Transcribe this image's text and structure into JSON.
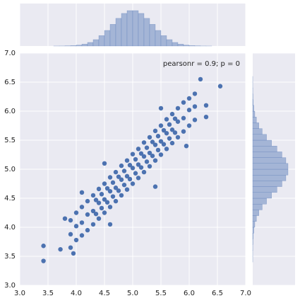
{
  "chart_data": {
    "type": "scatter",
    "annotation": "pearsonr = 0.9; p = 0",
    "color": "#4c72b0",
    "hist_color": "#a4b5d6",
    "grid": true,
    "xlim": [
      3.0,
      7.0
    ],
    "ylim": [
      3.0,
      7.0
    ],
    "xticks": [
      {
        "value": 3.0,
        "label": "3.0"
      },
      {
        "value": 3.5,
        "label": "3.5"
      },
      {
        "value": 4.0,
        "label": "4.0"
      },
      {
        "value": 4.5,
        "label": "4.5"
      },
      {
        "value": 5.0,
        "label": "5.0"
      },
      {
        "value": 5.5,
        "label": "5.5"
      },
      {
        "value": 6.0,
        "label": "6.0"
      },
      {
        "value": 6.5,
        "label": "6.5"
      },
      {
        "value": 7.0,
        "label": "7.0"
      }
    ],
    "yticks": [
      {
        "value": 3.0,
        "label": "3.0"
      },
      {
        "value": 3.5,
        "label": "3.5"
      },
      {
        "value": 4.0,
        "label": "4.0"
      },
      {
        "value": 4.5,
        "label": "4.5"
      },
      {
        "value": 5.0,
        "label": "5.0"
      },
      {
        "value": 5.5,
        "label": "5.5"
      },
      {
        "value": 6.0,
        "label": "6.0"
      },
      {
        "value": 6.5,
        "label": "6.5"
      },
      {
        "value": 7.0,
        "label": "7.0"
      }
    ],
    "x": [
      3.9,
      3.9,
      3.9,
      4.0,
      4.0,
      4.0,
      4.1,
      4.1,
      4.1,
      4.2,
      4.2,
      4.2,
      4.3,
      4.3,
      4.3,
      4.4,
      4.4,
      4.4,
      4.5,
      4.5,
      4.5,
      4.6,
      4.6,
      4.6,
      4.7,
      4.7,
      4.7,
      4.8,
      4.8,
      4.8,
      4.9,
      4.9,
      4.9,
      5.0,
      5.0,
      5.0,
      5.1,
      5.1,
      5.1,
      5.2,
      5.2,
      5.2,
      5.3,
      5.3,
      5.3,
      5.4,
      5.4,
      5.4,
      5.5,
      5.5,
      5.5,
      5.6,
      5.6,
      5.6,
      5.7,
      5.7,
      5.7,
      5.8,
      5.8,
      5.8,
      5.9,
      5.9,
      5.9,
      6.0,
      6.0,
      6.0,
      6.1,
      6.1,
      6.1,
      3.42,
      3.42,
      3.72,
      3.8,
      3.95,
      4.6,
      4.1,
      5.5,
      6.2,
      6.55,
      6.3,
      6.3,
      5.95,
      4.5,
      5.4,
      4.35,
      4.35,
      4.45,
      4.45,
      4.55,
      4.55,
      4.65,
      4.65,
      4.75,
      4.75,
      4.85,
      4.85,
      4.95,
      4.95,
      5.05,
      5.05,
      5.15,
      5.15,
      5.25,
      5.25,
      5.35,
      5.35,
      5.45,
      5.45,
      5.55,
      5.55,
      5.65,
      5.65,
      5.75,
      5.75
    ],
    "y": [
      3.88,
      3.65,
      4.12,
      4.02,
      3.78,
      4.25,
      4.08,
      3.86,
      4.35,
      4.22,
      3.95,
      4.45,
      4.28,
      4.05,
      4.55,
      4.42,
      4.15,
      4.66,
      4.48,
      4.25,
      4.75,
      4.62,
      4.35,
      4.86,
      4.68,
      4.45,
      4.95,
      4.82,
      4.55,
      5.06,
      4.88,
      4.65,
      5.15,
      5.02,
      4.75,
      5.26,
      5.08,
      4.85,
      5.35,
      5.22,
      4.95,
      5.46,
      5.28,
      5.05,
      5.55,
      5.42,
      5.15,
      5.66,
      5.48,
      5.25,
      5.75,
      5.62,
      5.35,
      5.86,
      5.68,
      5.45,
      5.95,
      5.82,
      5.55,
      6.05,
      5.88,
      5.65,
      6.15,
      6.02,
      5.75,
      6.22,
      6.08,
      5.85,
      6.3,
      3.42,
      3.68,
      3.62,
      4.15,
      3.55,
      4.05,
      4.6,
      6.05,
      6.55,
      6.43,
      6.1,
      5.9,
      5.4,
      5.1,
      4.7,
      4.23,
      4.47,
      4.33,
      4.57,
      4.43,
      4.67,
      4.53,
      4.77,
      4.63,
      4.87,
      4.73,
      4.97,
      4.83,
      5.07,
      4.93,
      5.17,
      5.03,
      5.27,
      5.13,
      5.37,
      5.23,
      5.47,
      5.33,
      5.57,
      5.43,
      5.67,
      5.53,
      5.77,
      5.63,
      5.87
    ],
    "x_hist": {
      "bins": [
        3.4,
        3.5,
        3.6,
        3.7,
        3.8,
        3.9,
        4.0,
        4.1,
        4.2,
        4.3,
        4.4,
        4.5,
        4.6,
        4.7,
        4.8,
        4.9,
        5.0,
        5.1,
        5.2,
        5.3,
        5.4,
        5.5,
        5.6,
        5.7,
        5.8,
        5.9,
        6.0,
        6.1,
        6.2,
        6.3,
        6.4,
        6.5,
        6.6
      ],
      "counts": [
        0,
        0,
        1,
        2,
        5,
        13,
        29,
        60,
        114,
        204,
        332,
        497,
        692,
        883,
        1040,
        1129,
        1129,
        1040,
        883,
        692,
        497,
        332,
        204,
        114,
        60,
        29,
        13,
        5,
        2,
        1,
        0,
        0
      ]
    },
    "y_hist": {
      "bins": [
        3.4,
        3.5,
        3.6,
        3.7,
        3.8,
        3.9,
        4.0,
        4.1,
        4.2,
        4.3,
        4.4,
        4.5,
        4.6,
        4.7,
        4.8,
        4.9,
        5.0,
        5.1,
        5.2,
        5.3,
        5.4,
        5.5,
        5.6,
        5.7,
        5.8,
        5.9,
        6.0,
        6.1,
        6.2,
        6.3,
        6.4,
        6.5,
        6.6
      ],
      "counts": [
        1,
        1,
        3,
        8,
        16,
        32,
        59,
        104,
        172,
        266,
        388,
        529,
        680,
        820,
        929,
        989,
        989,
        929,
        820,
        680,
        529,
        388,
        266,
        172,
        104,
        59,
        32,
        16,
        8,
        3,
        1,
        1
      ]
    }
  }
}
